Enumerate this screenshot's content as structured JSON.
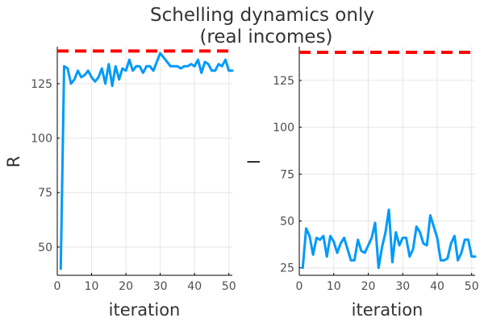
{
  "title_lines": [
    "Schelling dynamics only",
    "(real incomes)"
  ],
  "colors": {
    "series": "#009af9",
    "reference": "#ff0000",
    "grid": "#e6e6e6",
    "axis": "#000000"
  },
  "chart_data": [
    {
      "type": "line",
      "xlabel": "iteration",
      "ylabel": "R",
      "xlim": [
        0,
        51
      ],
      "ylim": [
        37,
        142
      ],
      "xticks": [
        0,
        10,
        20,
        30,
        40,
        50
      ],
      "yticks": [
        50,
        75,
        100,
        125
      ],
      "grid": true,
      "reference_line": {
        "y": 140,
        "style": "dashed"
      },
      "x": [
        1,
        2,
        3,
        4,
        5,
        6,
        7,
        8,
        9,
        10,
        11,
        12,
        13,
        14,
        15,
        16,
        17,
        18,
        19,
        20,
        21,
        22,
        23,
        24,
        25,
        26,
        27,
        28,
        29,
        30,
        31,
        32,
        33,
        34,
        35,
        36,
        37,
        38,
        39,
        40,
        41,
        42,
        43,
        44,
        45,
        46,
        47,
        48,
        49,
        50,
        51
      ],
      "y": [
        40,
        133,
        132,
        125,
        127,
        131,
        128,
        129,
        131,
        128,
        126,
        128,
        132,
        125,
        134,
        124,
        133,
        127,
        132,
        131,
        136,
        131,
        133,
        133,
        130,
        133,
        133,
        131,
        135,
        139,
        137,
        135,
        133,
        133,
        133,
        132,
        133,
        133,
        134,
        133,
        136,
        130,
        135,
        134,
        131,
        131,
        134,
        133,
        136,
        131,
        131
      ]
    },
    {
      "type": "line",
      "xlabel": "iteration",
      "ylabel": "I",
      "xlim": [
        0,
        51
      ],
      "ylim": [
        21,
        143
      ],
      "xticks": [
        0,
        10,
        20,
        30,
        40,
        50
      ],
      "yticks": [
        25,
        50,
        75,
        100,
        125
      ],
      "grid": true,
      "reference_line": {
        "y": 140,
        "style": "dashed"
      },
      "x": [
        1,
        2,
        3,
        4,
        5,
        6,
        7,
        8,
        9,
        10,
        11,
        12,
        13,
        14,
        15,
        16,
        17,
        18,
        19,
        20,
        21,
        22,
        23,
        24,
        25,
        26,
        27,
        28,
        29,
        30,
        31,
        32,
        33,
        34,
        35,
        36,
        37,
        38,
        39,
        40,
        41,
        42,
        43,
        44,
        45,
        46,
        47,
        48,
        49,
        50,
        51
      ],
      "y": [
        25,
        46,
        42,
        32,
        41,
        40,
        42,
        31,
        42,
        39,
        33,
        38,
        41,
        35,
        29,
        29,
        40,
        34,
        33,
        37,
        41,
        49,
        25,
        36,
        44,
        56,
        28,
        44,
        37,
        41,
        41,
        31,
        35,
        47,
        44,
        38,
        37,
        53,
        47,
        41,
        29,
        29,
        30,
        38,
        42,
        29,
        33,
        40,
        40,
        31,
        31
      ]
    }
  ]
}
